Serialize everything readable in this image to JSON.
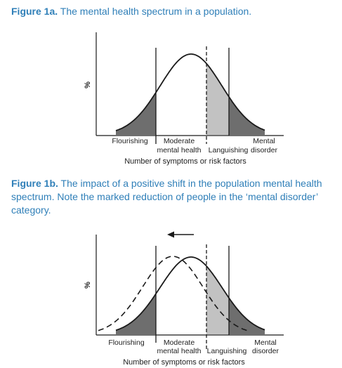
{
  "figure_a": {
    "label": "Figure 1a.",
    "caption": " The mental health spectrum in a population.",
    "y_label": "%",
    "categories": [
      {
        "line1": "Flourishing",
        "line2": ""
      },
      {
        "line1": "Moderate",
        "line2": "mental health"
      },
      {
        "line1": "",
        "line2": "Languishing"
      },
      {
        "line1": "Mental",
        "line2": "disorder"
      }
    ],
    "x_label": "Number of symptoms or risk factors"
  },
  "figure_b": {
    "label": "Figure 1b.",
    "caption": " The impact of a positive shift in the population mental health spectrum. Note the marked reduction of people in the ‘mental disorder’ category.",
    "y_label": "%",
    "categories": [
      {
        "line1": "Flourishing",
        "line2": ""
      },
      {
        "line1": "Moderate",
        "line2": "mental health"
      },
      {
        "line1": "",
        "line2": "Languishing"
      },
      {
        "line1": "Mental",
        "line2": "disorder"
      }
    ],
    "x_label": "Number of symptoms or risk factors"
  },
  "colors": {
    "caption": "#2f7fb8",
    "dark_fill": "#6e6e6e",
    "light_fill": "#c2c2c2",
    "stroke": "#1a1a1a"
  }
}
